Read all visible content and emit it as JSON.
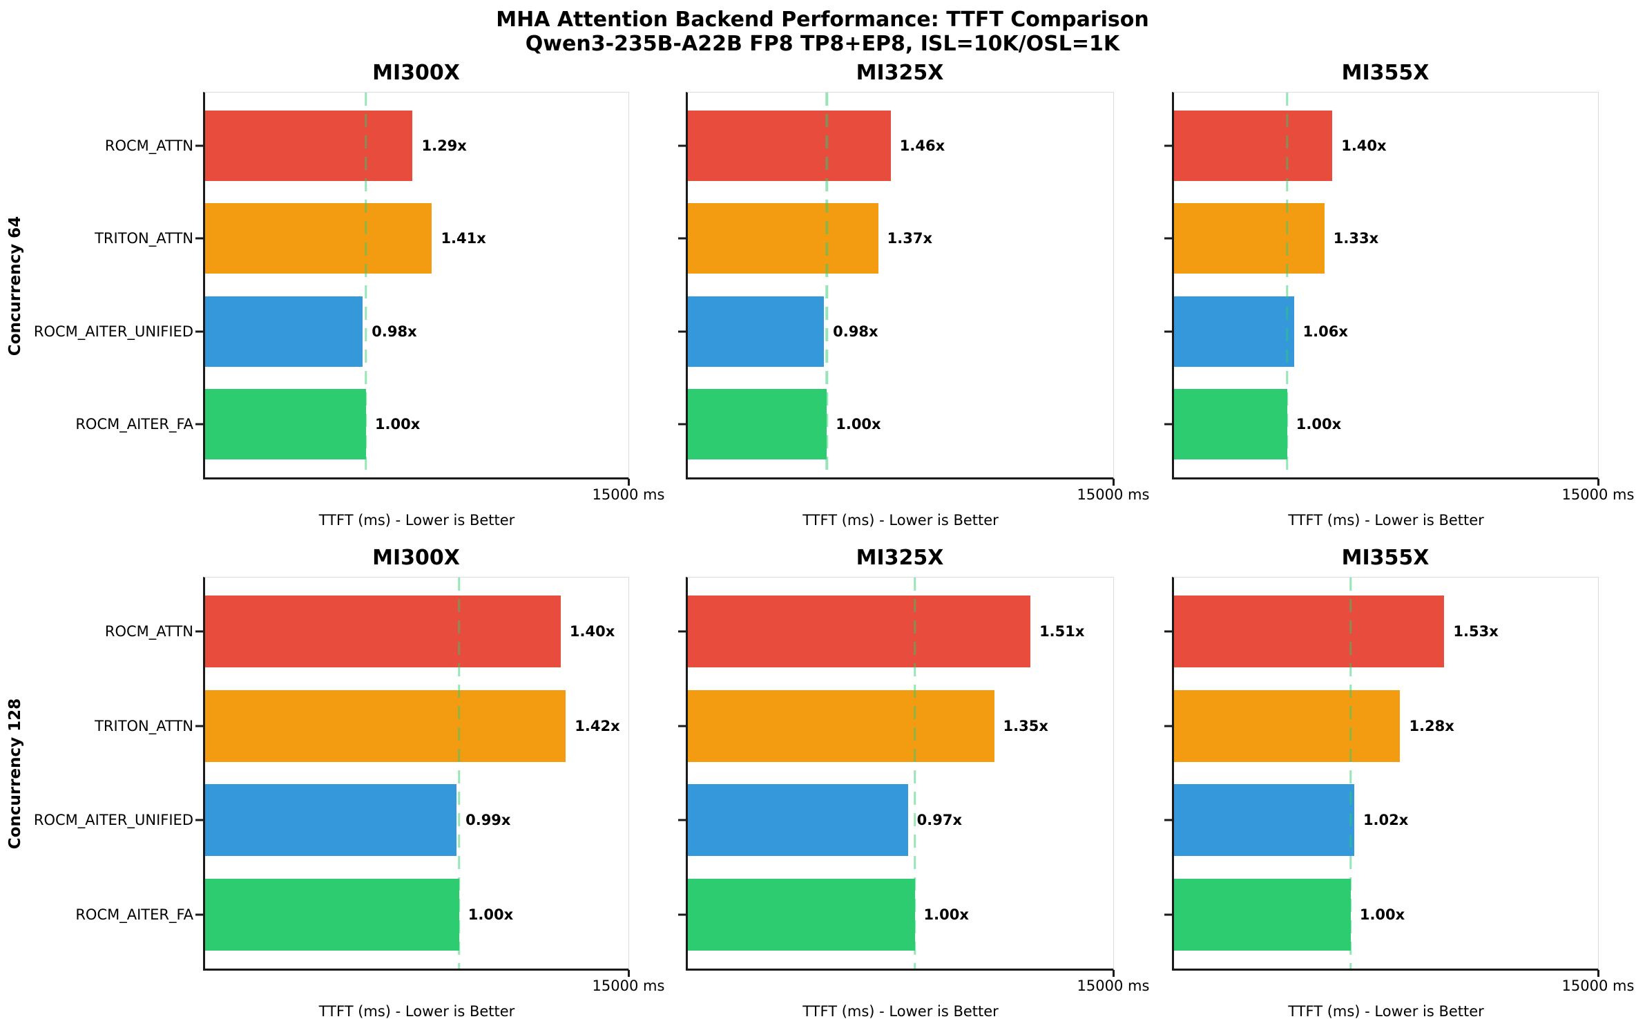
{
  "figure": {
    "title_line1": "MHA Attention Backend Performance: TTFT Comparison",
    "title_line2": "Qwen3-235B-A22B FP8 TP8+EP8, ISL=10K/OSL=1K"
  },
  "axis": {
    "xlabel": "TTFT (ms) - Lower is Better",
    "max_ms": 15000,
    "tick_label": "15000 ms"
  },
  "row_labels": [
    "Concurrency 64",
    "Concurrency 128"
  ],
  "col_titles": [
    "MI300X",
    "MI325X",
    "MI355X"
  ],
  "backends": [
    "ROCM_ATTN",
    "TRITON_ATTN",
    "ROCM_AITER_UNIFIED",
    "ROCM_AITER_FA"
  ],
  "palette": {
    "ROCM_ATTN": "#e74c3c",
    "TRITON_ATTN": "#f39c12",
    "ROCM_AITER_UNIFIED": "#3498db",
    "ROCM_AITER_FA": "#2ecc71",
    "baseline_dash": "#2ecc71",
    "spine_dark": "#1a1a1a",
    "spine_light": "#dcdcdc"
  },
  "chart_data": [
    {
      "type": "bar",
      "orientation": "horizontal",
      "row_label": "Concurrency 64",
      "title": "MI300X",
      "categories": [
        "ROCM_ATTN",
        "TRITON_ATTN",
        "ROCM_AITER_UNIFIED",
        "ROCM_AITER_FA"
      ],
      "relative_ttft": [
        1.29,
        1.41,
        0.98,
        1.0
      ],
      "bar_labels": [
        "1.29x",
        "1.41x",
        "0.98x",
        "1.00x"
      ],
      "baseline_ttft_ms_est": 5700,
      "xlim": [
        0,
        15000
      ],
      "x_tick_labels": [
        "15000 ms"
      ],
      "xlabel": "TTFT (ms) - Lower is Better",
      "baseline_marker": "vertical dashed green line at 1.00x reference"
    },
    {
      "type": "bar",
      "orientation": "horizontal",
      "row_label": "Concurrency 64",
      "title": "MI325X",
      "categories": [
        "ROCM_ATTN",
        "TRITON_ATTN",
        "ROCM_AITER_UNIFIED",
        "ROCM_AITER_FA"
      ],
      "relative_ttft": [
        1.46,
        1.37,
        0.98,
        1.0
      ],
      "bar_labels": [
        "1.46x",
        "1.37x",
        "0.98x",
        "1.00x"
      ],
      "baseline_ttft_ms_est": 4900,
      "xlim": [
        0,
        15000
      ],
      "x_tick_labels": [
        "15000 ms"
      ],
      "xlabel": "TTFT (ms) - Lower is Better",
      "baseline_marker": "vertical dashed green line at 1.00x reference"
    },
    {
      "type": "bar",
      "orientation": "horizontal",
      "row_label": "Concurrency 64",
      "title": "MI355X",
      "categories": [
        "ROCM_ATTN",
        "TRITON_ATTN",
        "ROCM_AITER_UNIFIED",
        "ROCM_AITER_FA"
      ],
      "relative_ttft": [
        1.4,
        1.33,
        1.06,
        1.0
      ],
      "bar_labels": [
        "1.40x",
        "1.33x",
        "1.06x",
        "1.00x"
      ],
      "baseline_ttft_ms_est": 4000,
      "xlim": [
        0,
        15000
      ],
      "x_tick_labels": [
        "15000 ms"
      ],
      "xlabel": "TTFT (ms) - Lower is Better",
      "baseline_marker": "vertical dashed green line at 1.00x reference"
    },
    {
      "type": "bar",
      "orientation": "horizontal",
      "row_label": "Concurrency 128",
      "title": "MI300X",
      "categories": [
        "ROCM_ATTN",
        "TRITON_ATTN",
        "ROCM_AITER_UNIFIED",
        "ROCM_AITER_FA"
      ],
      "relative_ttft": [
        1.4,
        1.42,
        0.99,
        1.0
      ],
      "bar_labels": [
        "1.40x",
        "1.42x",
        "0.99x",
        "1.00x"
      ],
      "baseline_ttft_ms_est": 9000,
      "xlim": [
        0,
        15000
      ],
      "x_tick_labels": [
        "15000 ms"
      ],
      "xlabel": "TTFT (ms) - Lower is Better",
      "baseline_marker": "vertical dashed green line at 1.00x reference"
    },
    {
      "type": "bar",
      "orientation": "horizontal",
      "row_label": "Concurrency 128",
      "title": "MI325X",
      "categories": [
        "ROCM_ATTN",
        "TRITON_ATTN",
        "ROCM_AITER_UNIFIED",
        "ROCM_AITER_FA"
      ],
      "relative_ttft": [
        1.51,
        1.35,
        0.97,
        1.0
      ],
      "bar_labels": [
        "1.51x",
        "1.35x",
        "0.97x",
        "1.00x"
      ],
      "baseline_ttft_ms_est": 8000,
      "xlim": [
        0,
        15000
      ],
      "x_tick_labels": [
        "15000 ms"
      ],
      "xlabel": "TTFT (ms) - Lower is Better",
      "baseline_marker": "vertical dashed green line at 1.00x reference"
    },
    {
      "type": "bar",
      "orientation": "horizontal",
      "row_label": "Concurrency 128",
      "title": "MI355X",
      "categories": [
        "ROCM_ATTN",
        "TRITON_ATTN",
        "ROCM_AITER_UNIFIED",
        "ROCM_AITER_FA"
      ],
      "relative_ttft": [
        1.53,
        1.28,
        1.02,
        1.0
      ],
      "bar_labels": [
        "1.53x",
        "1.28x",
        "1.02x",
        "1.00x"
      ],
      "baseline_ttft_ms_est": 6250,
      "xlim": [
        0,
        15000
      ],
      "x_tick_labels": [
        "15000 ms"
      ],
      "xlabel": "TTFT (ms) - Lower is Better",
      "baseline_marker": "vertical dashed green line at 1.00x reference"
    }
  ]
}
